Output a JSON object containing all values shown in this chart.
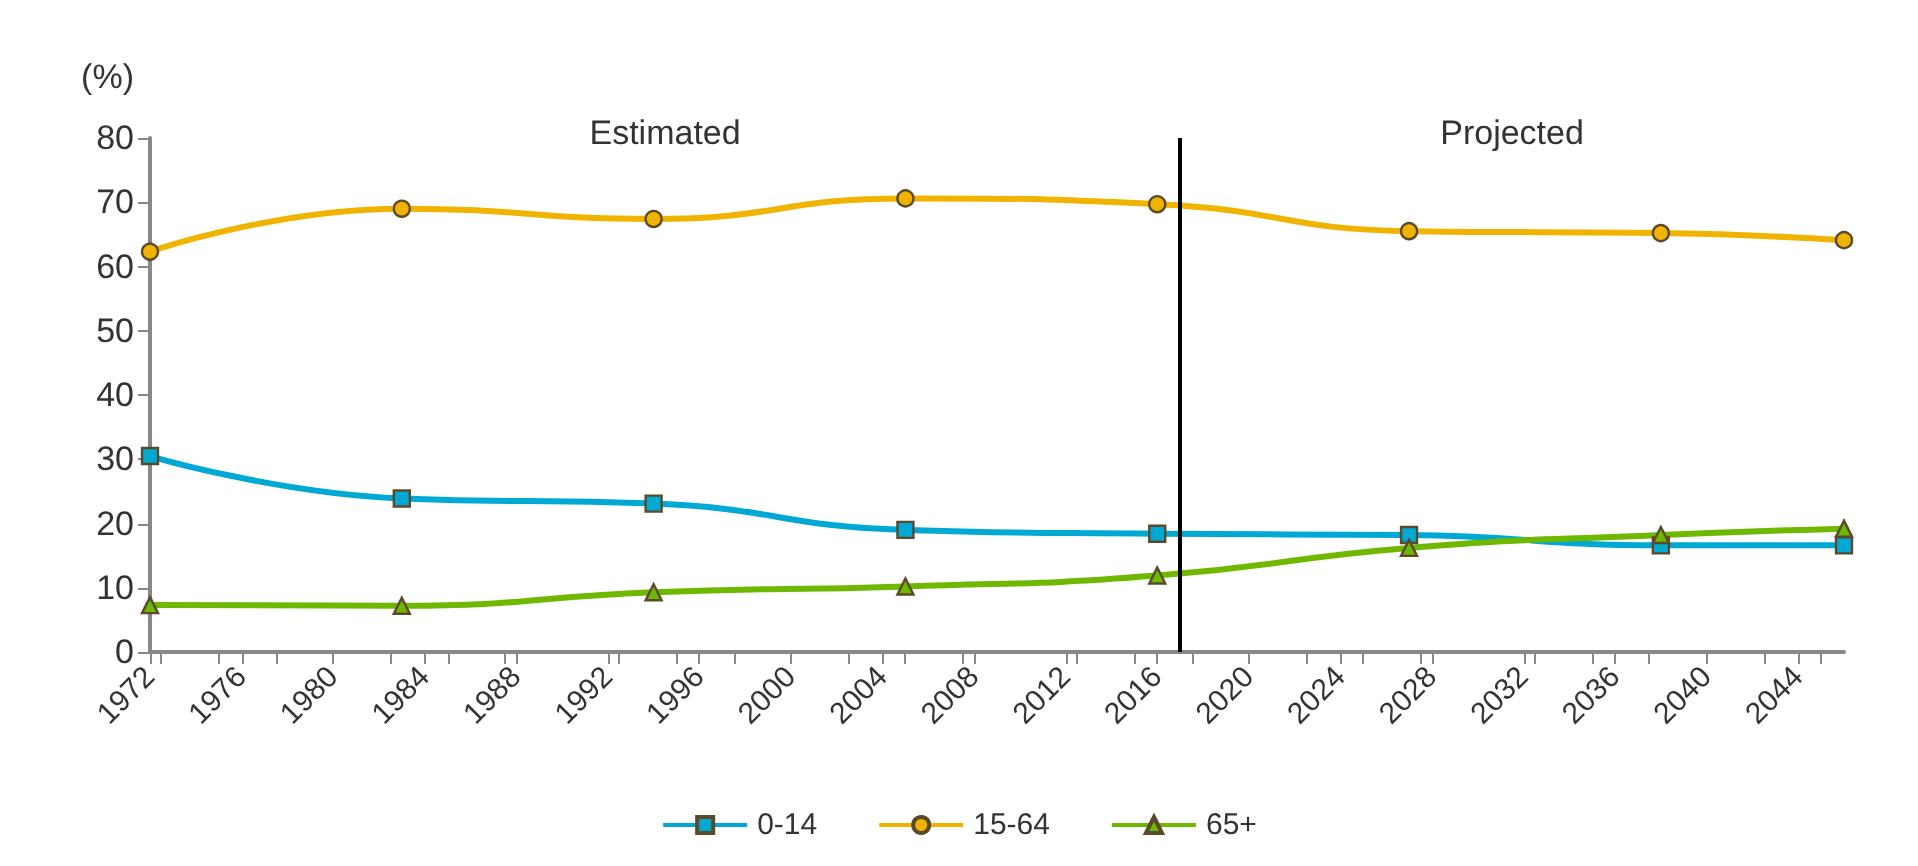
{
  "chart_data": {
    "type": "line",
    "ylabel": "(%)",
    "x": [
      1972,
      1983,
      1994,
      2005,
      2016,
      2027,
      2038,
      2046
    ],
    "xlim": [
      1972,
      2046
    ],
    "xticks": [
      1972,
      1976,
      1980,
      1984,
      1988,
      1992,
      1996,
      2000,
      2004,
      2008,
      2012,
      2016,
      2020,
      2024,
      2028,
      2032,
      2036,
      2040,
      2044
    ],
    "ylim": [
      0,
      80
    ],
    "yticks": [
      0,
      10,
      20,
      30,
      40,
      50,
      60,
      70,
      80
    ],
    "series": [
      {
        "name": "0-14",
        "color": "#00a9d4",
        "marker": "square",
        "values": [
          30.5,
          23.9,
          23.1,
          19.0,
          18.4,
          18.2,
          16.6,
          16.6
        ]
      },
      {
        "name": "15-64",
        "color": "#f0b400",
        "marker": "circle",
        "values": [
          62.3,
          69.0,
          67.4,
          70.6,
          69.7,
          65.5,
          65.2,
          64.1
        ]
      },
      {
        "name": "65+",
        "color": "#6fb800",
        "marker": "triangle",
        "values": [
          7.3,
          7.2,
          9.3,
          10.2,
          11.9,
          16.2,
          18.2,
          19.2
        ]
      }
    ],
    "ref_lines": [
      {
        "axis": "x",
        "value": 2017,
        "color": "#000000"
      }
    ],
    "annotations": [
      "Estimated",
      "Projected"
    ],
    "grid": false,
    "legend": "bottom",
    "line_style": "solid"
  }
}
